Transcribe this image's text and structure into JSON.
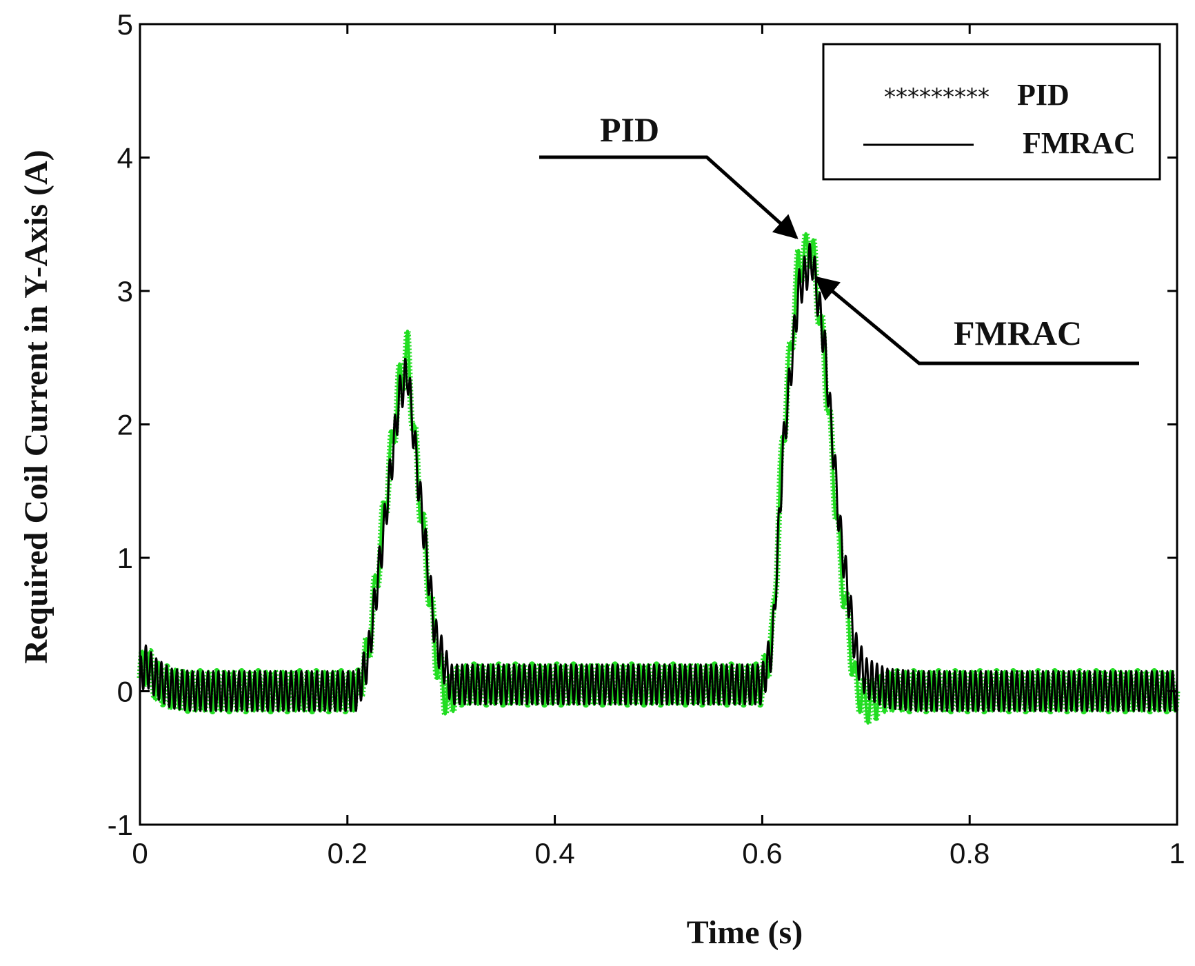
{
  "chart_data": {
    "type": "line",
    "title": "",
    "xlabel": "Time (s)",
    "ylabel": "Required Coil Current in Y-Axis (A)",
    "xlim": [
      0,
      1
    ],
    "ylim": [
      -1,
      5
    ],
    "grid": false,
    "legend_placement": "top-right",
    "x_ticks": [
      0,
      0.2,
      0.4,
      0.6,
      0.8,
      1
    ],
    "x_tick_labels": [
      "0",
      "0.2",
      "0.4",
      "0.6",
      "0.8",
      "1"
    ],
    "y_ticks": [
      -1,
      0,
      1,
      2,
      3,
      4,
      5
    ],
    "y_tick_labels": [
      "-1",
      "0",
      "1",
      "2",
      "3",
      "4",
      "5"
    ],
    "series": [
      {
        "name": "PID",
        "color": "#22dd22",
        "style": "marker-star",
        "legend_symbol": "*********",
        "oscillation_amplitude": 0.15,
        "oscillation_period": 0.008,
        "envelope": {
          "x": [
            0,
            0.005,
            0.015,
            0.03,
            0.05,
            0.21,
            0.22,
            0.235,
            0.25,
            0.258,
            0.268,
            0.285,
            0.295,
            0.31,
            0.33,
            0.6,
            0.61,
            0.62,
            0.635,
            0.648,
            0.66,
            0.675,
            0.69,
            0.7,
            0.72,
            0.75,
            1
          ],
          "y": [
            0.1,
            0.22,
            0.08,
            0.02,
            0.0,
            0.0,
            0.3,
            1.3,
            2.3,
            2.55,
            1.6,
            0.3,
            -0.05,
            0.05,
            0.05,
            0.05,
            0.4,
            1.9,
            3.2,
            3.35,
            2.5,
            1.0,
            0.05,
            -0.1,
            0.0,
            0.0,
            0.0
          ]
        }
      },
      {
        "name": "FMRAC",
        "color": "#000000",
        "style": "solid",
        "legend_symbol": "line",
        "oscillation_amplitude": 0.15,
        "oscillation_period": 0.005,
        "envelope": {
          "x": [
            0,
            0.005,
            0.015,
            0.03,
            0.05,
            0.21,
            0.22,
            0.235,
            0.25,
            0.258,
            0.268,
            0.285,
            0.3,
            0.33,
            0.6,
            0.61,
            0.62,
            0.635,
            0.648,
            0.66,
            0.675,
            0.69,
            0.7,
            0.72,
            0.75,
            1
          ],
          "y": [
            0.1,
            0.2,
            0.1,
            0.02,
            0.0,
            0.0,
            0.25,
            1.2,
            2.2,
            2.4,
            1.6,
            0.4,
            0.05,
            0.05,
            0.05,
            0.35,
            1.8,
            3.0,
            3.25,
            2.6,
            1.2,
            0.3,
            0.1,
            0.02,
            0.0,
            0.0
          ]
        }
      }
    ],
    "annotations": [
      {
        "text": "PID",
        "arrow_target": [
          0.633,
          3.4
        ]
      },
      {
        "text": "FMRAC",
        "arrow_target": [
          0.652,
          3.1
        ]
      }
    ]
  }
}
